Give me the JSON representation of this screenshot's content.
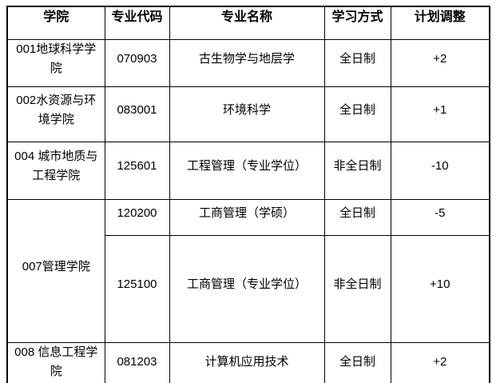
{
  "table": {
    "headers": {
      "college": "学院",
      "code": "专业代码",
      "major": "专业名称",
      "mode": "学习方式",
      "adjust": "计划调整"
    },
    "rows": [
      {
        "college": "001地球科学学院",
        "code": "070903",
        "major": "古生物学与地层学",
        "mode": "全日制",
        "adjust": "+2"
      },
      {
        "college": "002水资源与环境学院",
        "code": "083001",
        "major": "环境科学",
        "mode": "全日制",
        "adjust": "+1"
      },
      {
        "college": "004 城市地质与工程学院",
        "code": "125601",
        "major": "工程管理（专业学位）",
        "mode": "非全日制",
        "adjust": "-10"
      },
      {
        "college": "007管理学院",
        "code": "120200",
        "major": "工商管理（学硕）",
        "mode": "全日制",
        "adjust": "-5"
      },
      {
        "college": "",
        "code": "125100",
        "major": "工商管理（专业学位）",
        "mode": "非全日制",
        "adjust": "+10"
      },
      {
        "college": "008 信息工程学院",
        "code": "081203",
        "major": "计算机应用技术",
        "mode": "全日制",
        "adjust": "+2"
      }
    ],
    "colors": {
      "border": "#000000",
      "text": "#000000",
      "background": "#ffffff"
    }
  }
}
